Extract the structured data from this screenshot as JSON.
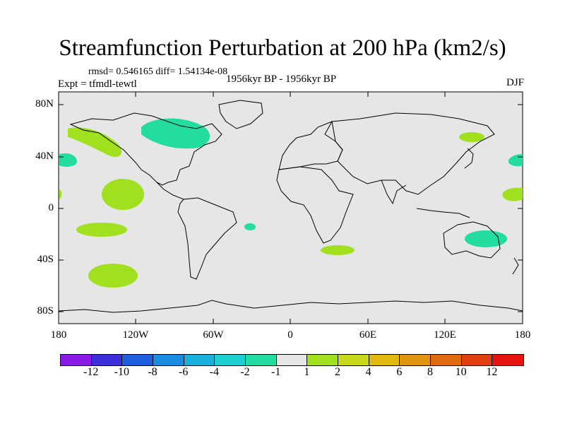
{
  "title": "Streamfunction Perturbation at 200 hPa (km2/s)",
  "stats": "rmsd= 0.546165 diff= 1.54134e-08",
  "expt": "Expt = tfmdl-tewtl",
  "period": "1956kyr BP - 1956kyr BP",
  "season": "DJF",
  "lat_labels": [
    "80N",
    "40N",
    "0",
    "40S",
    "80S"
  ],
  "lon_labels": [
    "180",
    "120W",
    "60W",
    "0",
    "60E",
    "120E",
    "180"
  ],
  "colorbar": {
    "labels": [
      "-12",
      "-10",
      "-8",
      "-6",
      "-4",
      "-2",
      "-1",
      "1",
      "2",
      "4",
      "6",
      "8",
      "10",
      "12"
    ],
    "colors": [
      "#8c1ae6",
      "#3a2fd8",
      "#1e5fe0",
      "#1b8de0",
      "#19b0dc",
      "#1dcfcf",
      "#22dca0",
      "#e6e6e6",
      "#a0e01e",
      "#c8d81a",
      "#e0b810",
      "#e09410",
      "#e06a10",
      "#e04010",
      "#e6140f"
    ]
  },
  "map": {
    "ocean_color": "#e6e6e6",
    "anomalies": [
      {
        "name": "north-pacific-positive",
        "level": "1 to 2",
        "color": "#a0e01e"
      },
      {
        "name": "central-pacific-positive",
        "level": "1 to 2",
        "color": "#a0e01e"
      },
      {
        "name": "south-pacific-positive",
        "level": "1 to 2",
        "color": "#a0e01e"
      },
      {
        "name": "far-south-pacific-positive",
        "level": "1 to 2",
        "color": "#a0e01e"
      },
      {
        "name": "canada-negative",
        "level": "-2 to -1",
        "color": "#22dca0"
      },
      {
        "name": "west-pacific-negative",
        "level": "-2 to -1",
        "color": "#22dca0"
      },
      {
        "name": "australia-negative",
        "level": "-2 to -1",
        "color": "#22dca0"
      },
      {
        "name": "south-atlantic-negative",
        "level": "-2 to -1",
        "color": "#22dca0"
      },
      {
        "name": "kamchatka-positive",
        "level": "1 to 2",
        "color": "#a0e01e"
      },
      {
        "name": "dateline-positive",
        "level": "1 to 2",
        "color": "#a0e01e"
      },
      {
        "name": "south-africa-positive",
        "level": "1 to 2",
        "color": "#a0e01e"
      }
    ]
  }
}
